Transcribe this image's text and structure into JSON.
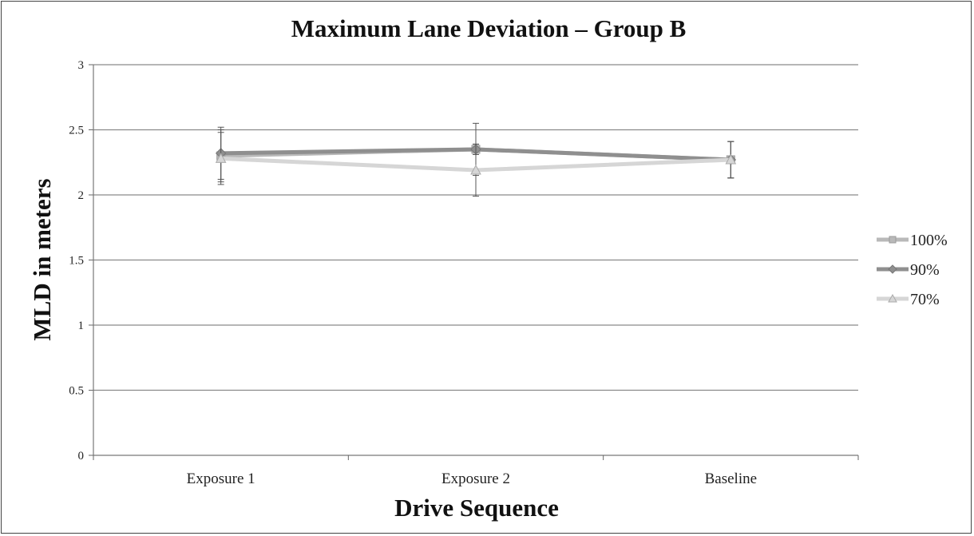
{
  "chart_data": {
    "type": "line",
    "title": "Maximum Lane Deviation – Group B",
    "xlabel": "Drive Sequence",
    "ylabel": "MLD in meters",
    "categories": [
      "Exposure 1",
      "Exposure 2",
      "Baseline"
    ],
    "ylim": [
      0,
      3
    ],
    "yticks": [
      "0",
      "0.5",
      "1",
      "1.5",
      "2",
      "2.5",
      "3"
    ],
    "grid": true,
    "legend_position": "right",
    "series": [
      {
        "name": "100%",
        "values": [
          2.3,
          2.35,
          2.27
        ],
        "error": [
          0.2,
          0.2,
          0.14
        ],
        "color": "#b9b9b9",
        "marker": "square"
      },
      {
        "name": "90%",
        "values": [
          2.32,
          2.35,
          2.27
        ],
        "error": [
          0.2,
          0.04,
          0.14
        ],
        "color": "#8f8f8f",
        "marker": "diamond"
      },
      {
        "name": "70%",
        "values": [
          2.28,
          2.19,
          2.27
        ],
        "error": [
          0.2,
          0.2,
          0.14
        ],
        "color": "#d6d6d6",
        "marker": "triangle"
      }
    ]
  }
}
